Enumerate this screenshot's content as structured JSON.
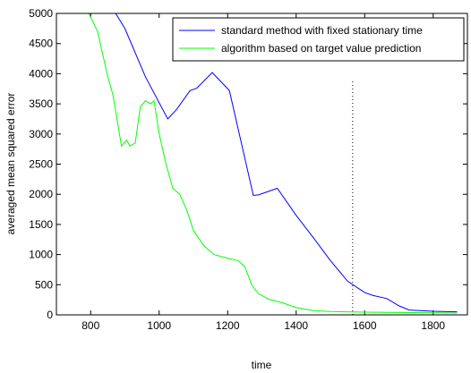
{
  "chart_data": {
    "type": "line",
    "xlabel": "time",
    "ylabel": "averaged mean squared error",
    "xlim": [
      700,
      1900
    ],
    "xticks": [
      800,
      1000,
      1200,
      1400,
      1600,
      1800
    ],
    "ylim": [
      0,
      5000
    ],
    "yticks": [
      0,
      500,
      1000,
      1500,
      2000,
      2500,
      3000,
      3500,
      4000,
      4500,
      5000
    ],
    "legend": "upper right",
    "series": [
      {
        "name": "standard method with fixed stationary time",
        "color": "#0000ff",
        "x": [
          873,
          900,
          960,
          1025,
          1050,
          1090,
          1110,
          1155,
          1205,
          1275,
          1290,
          1345,
          1400,
          1450,
          1500,
          1550,
          1600,
          1625,
          1665,
          1700,
          1730,
          1800,
          1870
        ],
        "values": [
          5000,
          4750,
          3950,
          3250,
          3400,
          3720,
          3760,
          4020,
          3720,
          1980,
          1990,
          2100,
          1650,
          1280,
          900,
          560,
          370,
          320,
          270,
          150,
          80,
          60,
          50
        ]
      },
      {
        "name": "algorithm based on target value prediction",
        "color": "#00ff00",
        "x": [
          795,
          820,
          850,
          865,
          890,
          905,
          915,
          930,
          945,
          960,
          975,
          985,
          1000,
          1020,
          1040,
          1060,
          1080,
          1100,
          1130,
          1160,
          1200,
          1230,
          1250,
          1270,
          1290,
          1320,
          1360,
          1400,
          1450,
          1500,
          1600,
          1870
        ],
        "values": [
          5000,
          4700,
          3950,
          3650,
          2800,
          2900,
          2800,
          2850,
          3450,
          3550,
          3500,
          3550,
          3000,
          2500,
          2100,
          2000,
          1750,
          1400,
          1150,
          1000,
          940,
          900,
          800,
          500,
          350,
          260,
          200,
          120,
          70,
          55,
          45,
          30
        ]
      }
    ],
    "vline": {
      "x": 1565,
      "y": [
        0,
        3900
      ]
    }
  }
}
